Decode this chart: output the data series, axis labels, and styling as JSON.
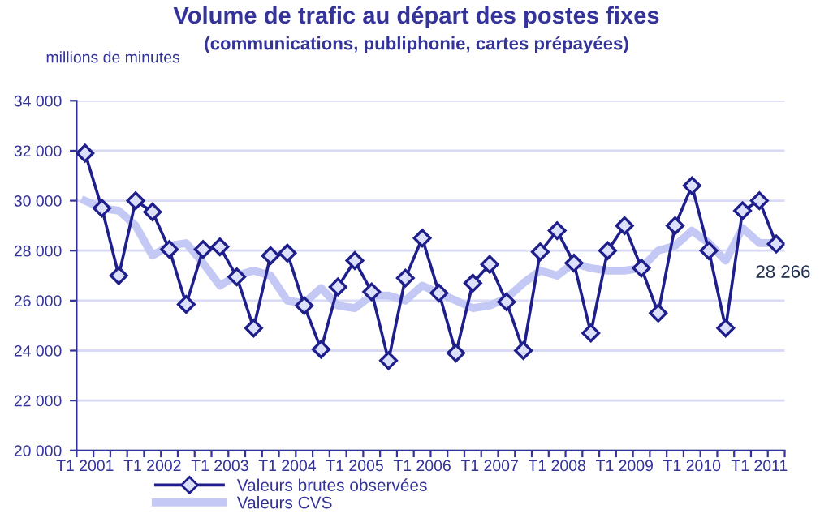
{
  "chart_data": {
    "type": "line",
    "title": "Volume de trafic au départ des postes fixes",
    "subtitle": "(communications, publiphonie, cartes prépayées)",
    "ylabel": "millions de minutes",
    "categories": [
      "T1 2001",
      null,
      null,
      null,
      "T1 2002",
      null,
      null,
      null,
      "T1 2003",
      null,
      null,
      null,
      "T1 2004",
      null,
      null,
      null,
      "T1 2005",
      null,
      null,
      null,
      "T1 2006",
      null,
      null,
      null,
      "T1 2007",
      null,
      null,
      null,
      "T1 2008",
      null,
      null,
      null,
      "T1 2009",
      null,
      null,
      null,
      "T1 2010",
      null,
      null,
      null,
      "T1 2011",
      null
    ],
    "series": [
      {
        "name": "Valeurs brutes observées",
        "color": "#1f1f8c",
        "marker": "diamond",
        "values": [
          31900,
          29700,
          27000,
          30000,
          29550,
          28050,
          25850,
          28050,
          28150,
          26950,
          24900,
          27800,
          27900,
          25800,
          24050,
          26550,
          27600,
          26350,
          23600,
          26900,
          28500,
          26300,
          23900,
          26700,
          27450,
          25950,
          24000,
          27950,
          28800,
          27500,
          24700,
          28000,
          29000,
          27300,
          25500,
          29000,
          30600,
          28000,
          24900,
          29600,
          30000,
          28266
        ],
        "value_labels": [
          null,
          null,
          null,
          null,
          null,
          null,
          null,
          null,
          null,
          null,
          null,
          null,
          null,
          null,
          null,
          null,
          null,
          null,
          null,
          null,
          null,
          null,
          null,
          null,
          null,
          null,
          null,
          null,
          null,
          null,
          null,
          null,
          null,
          null,
          null,
          null,
          null,
          null,
          null,
          null,
          null,
          "28 266"
        ]
      },
      {
        "name": "Valeurs CVS",
        "color": "#c4c8f4",
        "marker": "none",
        "values": [
          30000,
          29700,
          29600,
          29000,
          27800,
          28200,
          28300,
          27500,
          26600,
          27000,
          27200,
          27000,
          26000,
          25900,
          26500,
          25800,
          25700,
          26200,
          26200,
          26000,
          26600,
          26300,
          26000,
          25700,
          25800,
          26100,
          26700,
          27200,
          27000,
          27500,
          27300,
          27200,
          27200,
          27300,
          28000,
          28200,
          28800,
          28300,
          27600,
          28900,
          28300,
          28300
        ]
      }
    ],
    "ylim": [
      20000,
      34000
    ],
    "yticks": [
      {
        "value": 20000,
        "label": "20 000"
      },
      {
        "value": 22000,
        "label": "22 000"
      },
      {
        "value": 24000,
        "label": "24 000"
      },
      {
        "value": 26000,
        "label": "26 000"
      },
      {
        "value": 28000,
        "label": "28 000"
      },
      {
        "value": 30000,
        "label": "30 000"
      },
      {
        "value": 32000,
        "label": "32 000"
      },
      {
        "value": 34000,
        "label": "34 000"
      }
    ],
    "grid": "y",
    "legend": "bottom"
  }
}
